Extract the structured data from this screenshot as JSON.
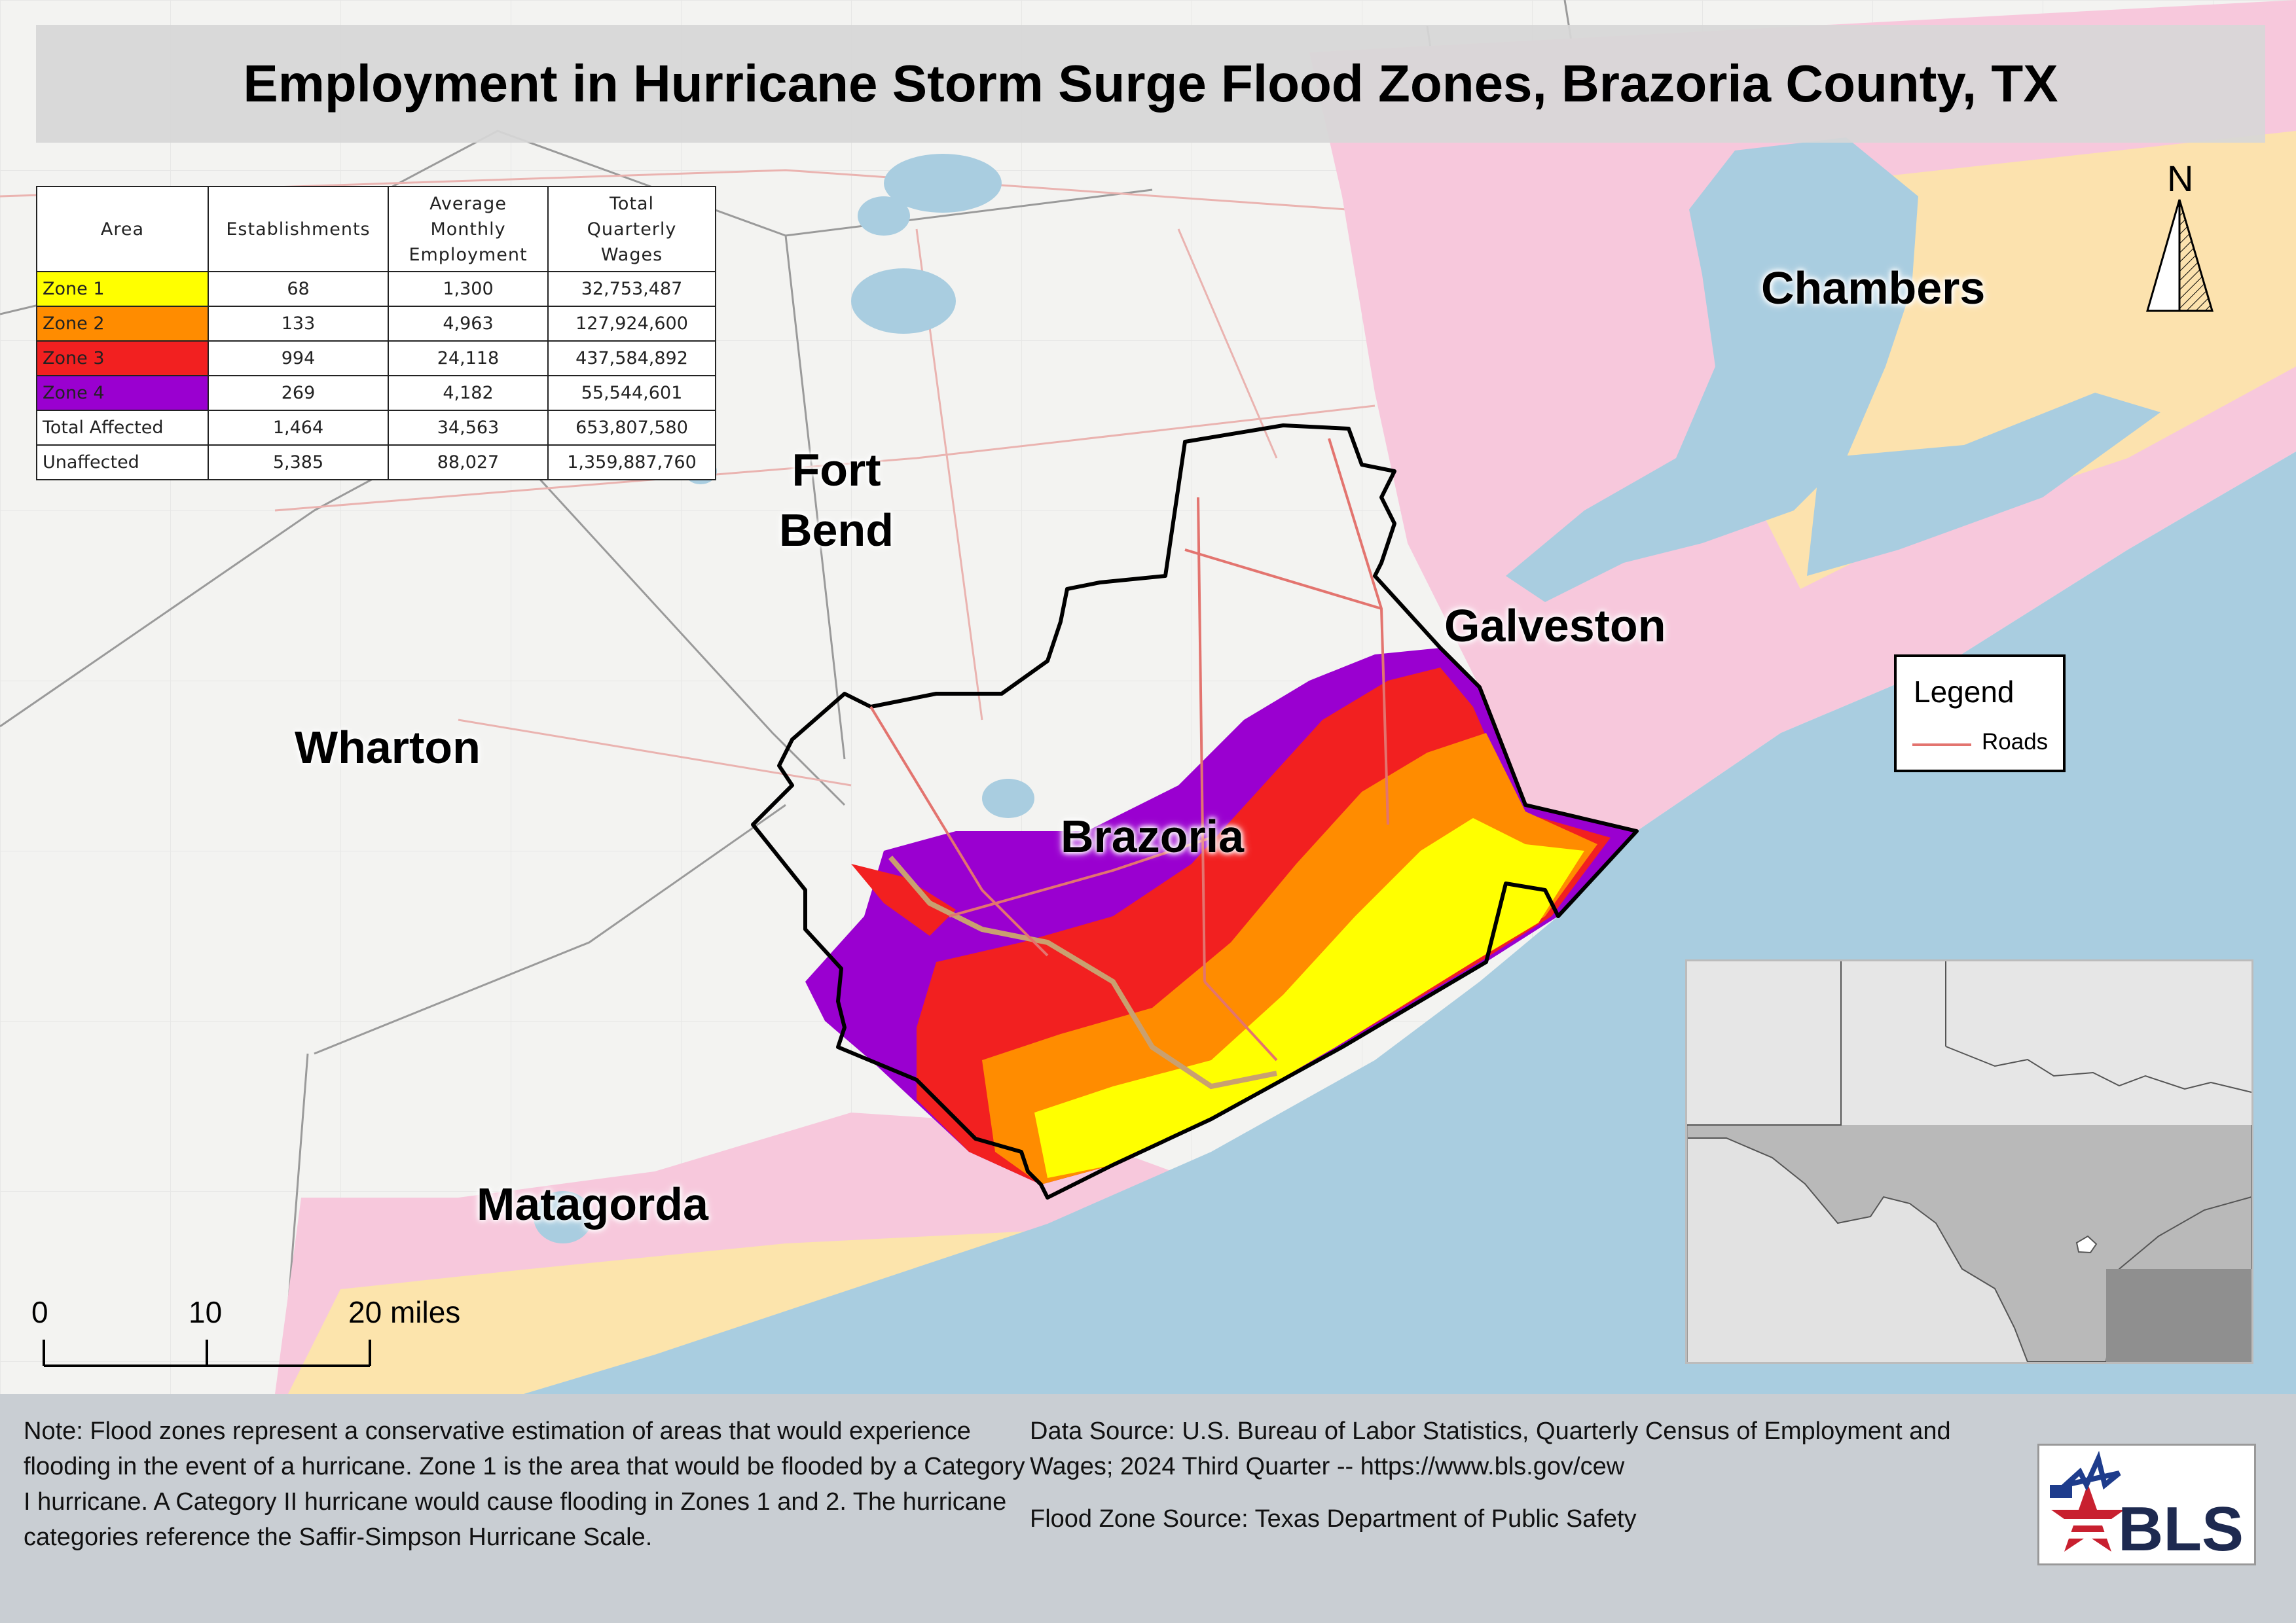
{
  "title": "Employment in Hurricane Storm Surge Flood Zones, Brazoria County, TX",
  "table": {
    "headers": {
      "area": "Area",
      "establishments": "Establishments",
      "employment": [
        "Average",
        "Monthly",
        "Employment"
      ],
      "wages": [
        "Total",
        "Quarterly",
        "Wages"
      ]
    },
    "rows": [
      {
        "area": "Zone 1",
        "color": "#ffff00",
        "establishments": "68",
        "employment": "1,300",
        "wages": "32,753,487"
      },
      {
        "area": "Zone 2",
        "color": "#ff8c00",
        "establishments": "133",
        "employment": "4,963",
        "wages": "127,924,600"
      },
      {
        "area": "Zone 3",
        "color": "#f22020",
        "establishments": "994",
        "employment": "24,118",
        "wages": "437,584,892"
      },
      {
        "area": "Zone 4",
        "color": "#9a00d0",
        "establishments": "269",
        "employment": "4,182",
        "wages": "55,544,601"
      },
      {
        "area": "Total Affected",
        "color": "#ffffff",
        "establishments": "1,464",
        "employment": "34,563",
        "wages": "653,807,580"
      },
      {
        "area": "Unaffected",
        "color": "#ffffff",
        "establishments": "5,385",
        "employment": "88,027",
        "wages": "1,359,887,760"
      }
    ]
  },
  "map": {
    "counties": {
      "fort_bend_line1": "Fort",
      "fort_bend_line2": "Bend",
      "chambers": "Chambers",
      "galveston": "Galveston",
      "wharton": "Wharton",
      "brazoria": "Brazoria",
      "matagorda": "Matagorda"
    },
    "colors": {
      "water": "#a9cde0",
      "land": "#f3f3f1",
      "zone1": "#ffff00",
      "zone2": "#ff8c00",
      "zone3": "#f22020",
      "zone4": "#9a00d0",
      "roads": "#e3746f"
    }
  },
  "north_arrow": {
    "label": "N"
  },
  "legend": {
    "title": "Legend",
    "roads_label": "Roads"
  },
  "scale_bar": {
    "label_0": "0",
    "label_10": "10",
    "label_20": "20 miles"
  },
  "note": "Note: Flood zones represent a conservative estimation of areas that would experience flooding in the event of a hurricane. Zone 1 is the area that would be flooded by a Category I hurricane. A Category II hurricane would cause flooding in Zones 1 and 2. The hurricane categories reference the Saffir-Simpson Hurricane Scale.",
  "data_source": "Data Source: U.S. Bureau of Labor Statistics, Quarterly Census of Employment and Wages; 2024 Third Quarter -- https://www.bls.gov/cew",
  "flood_source": "Flood Zone Source: Texas Department of Public Safety",
  "logo": {
    "text": "BLS"
  }
}
